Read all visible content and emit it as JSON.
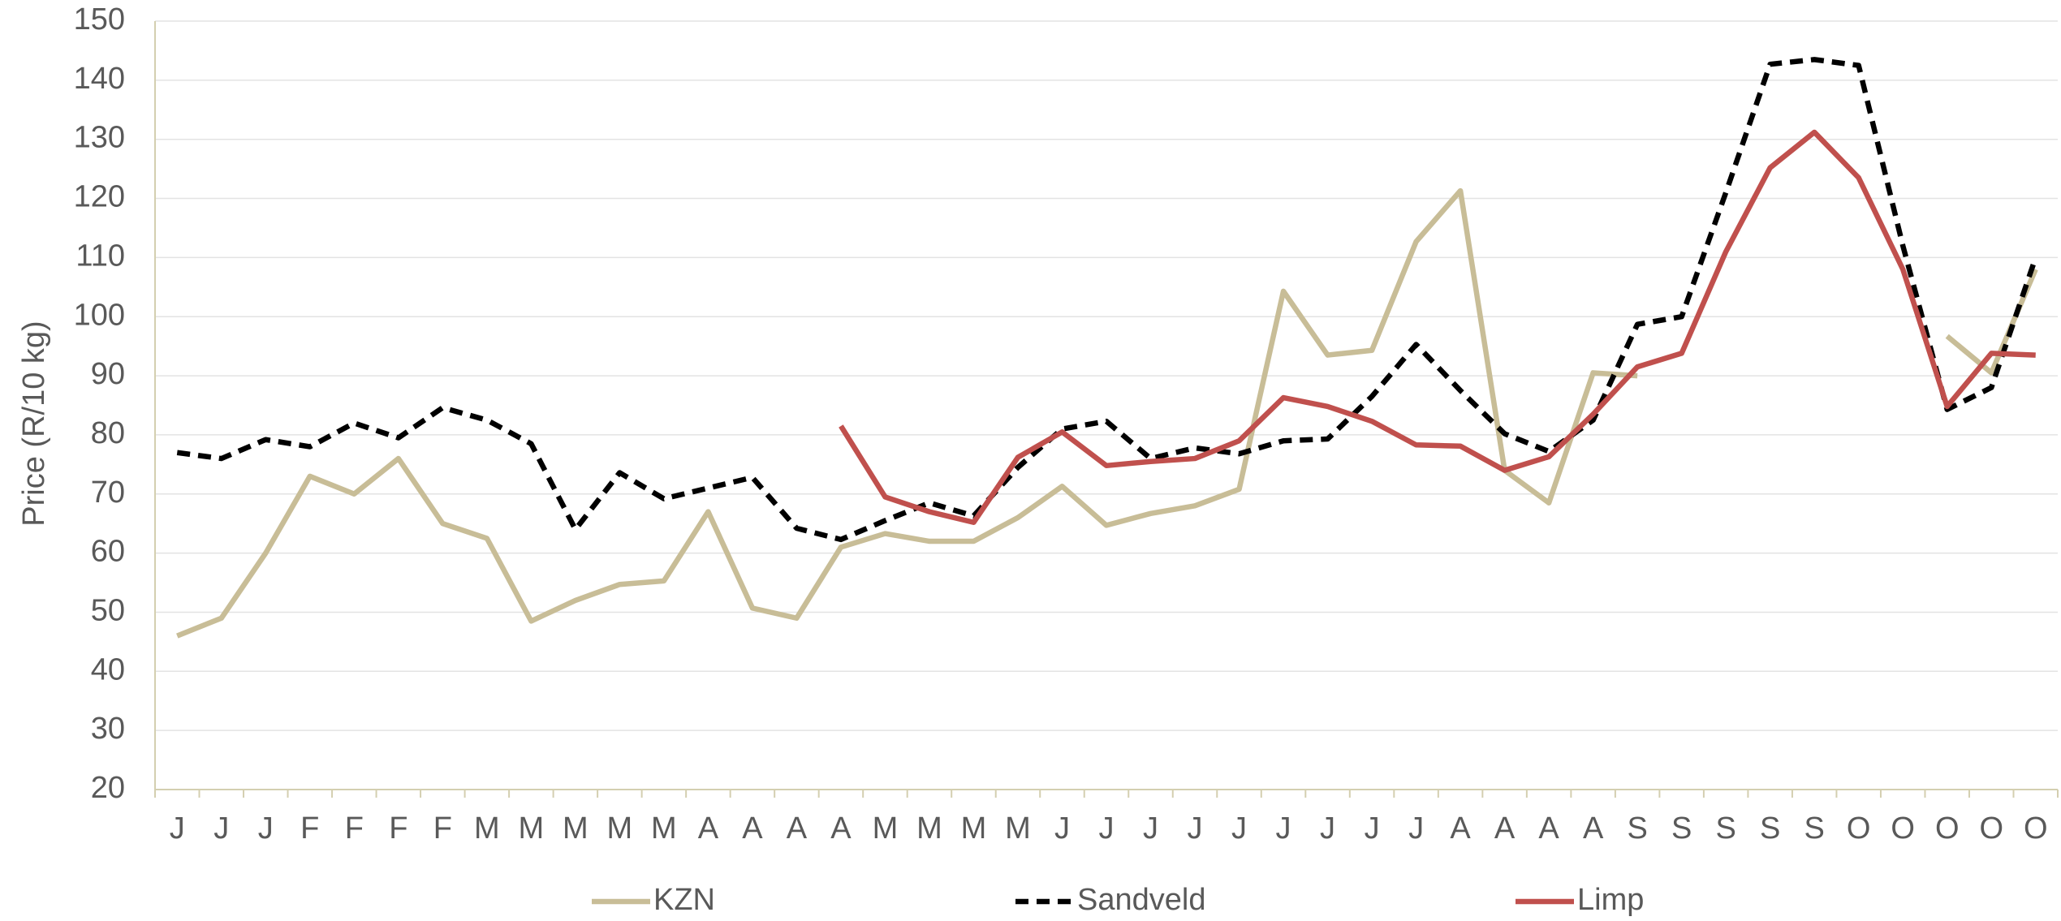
{
  "chart_data": {
    "type": "line",
    "y_label": "Price (R/10 kg)",
    "categories": [
      "J",
      "J",
      "J",
      "F",
      "F",
      "F",
      "F",
      "M",
      "M",
      "M",
      "M",
      "M",
      "A",
      "A",
      "A",
      "A",
      "M",
      "M",
      "M",
      "M",
      "J",
      "J",
      "J",
      "J",
      "J",
      "J",
      "J",
      "J",
      "J",
      "A",
      "A",
      "A",
      "A",
      "S",
      "S",
      "S",
      "S",
      "S",
      "O",
      "O",
      "O",
      "O",
      "O"
    ],
    "series": [
      {
        "name": "KZN",
        "color": "#c8bd97",
        "dash": false,
        "values": [
          46,
          49,
          60,
          73,
          70,
          76,
          65,
          62.5,
          48.5,
          52,
          54.7,
          55.3,
          67,
          50.7,
          49,
          61,
          63.3,
          62,
          62,
          66,
          71.3,
          64.7,
          66.7,
          68,
          70.8,
          104.3,
          93.5,
          94.3,
          112.7,
          121.3,
          74,
          68.5,
          90.5,
          90,
          null,
          null,
          null,
          null,
          null,
          null,
          96.7,
          90.5,
          108
        ]
      },
      {
        "name": "Sandveld",
        "color": "#000000",
        "dash": true,
        "values": [
          77,
          76,
          79.2,
          78,
          82,
          79.5,
          84.6,
          82.5,
          78.5,
          64,
          73.6,
          69.2,
          71,
          72.8,
          64.2,
          62.3,
          65.5,
          68.5,
          66.3,
          74.5,
          81,
          82.3,
          76,
          77.8,
          76.8,
          79,
          79.3,
          86.5,
          95.3,
          87.5,
          80.2,
          77.2,
          82.5,
          98.7,
          100,
          121,
          142.7,
          143.5,
          142.5,
          112,
          84.3,
          88,
          110
        ]
      },
      {
        "name": "Limp",
        "color": "#c0504d",
        "dash": false,
        "values": [
          null,
          null,
          null,
          null,
          null,
          null,
          null,
          null,
          null,
          null,
          null,
          null,
          null,
          null,
          null,
          81.5,
          69.5,
          67,
          65.2,
          76.2,
          80.5,
          74.8,
          75.5,
          76,
          79,
          86.3,
          84.8,
          82.3,
          78.3,
          78.1,
          74,
          76.3,
          83.5,
          91.5,
          93.8,
          111,
          125.2,
          131.2,
          123.5,
          108,
          84.8,
          93.8,
          93.5
        ]
      }
    ],
    "ylim": [
      20,
      150
    ],
    "yticks": [
      20,
      30,
      40,
      50,
      60,
      70,
      80,
      90,
      100,
      110,
      120,
      130,
      140,
      150
    ],
    "grid": true,
    "legend": "bottom"
  }
}
